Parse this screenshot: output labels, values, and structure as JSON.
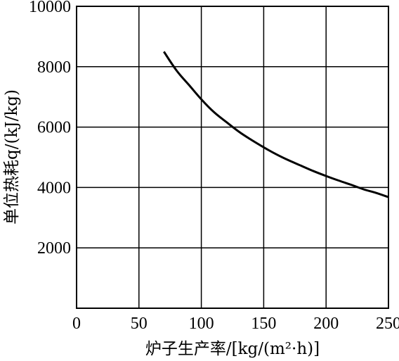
{
  "chart_data": {
    "type": "line",
    "xlabel": "炉子生产率/[kg/(m²·h)]",
    "ylabel": "单位热耗q/(kJ/kg)",
    "xlim": [
      0,
      250
    ],
    "ylim": [
      0,
      10000
    ],
    "x_ticks": [
      0,
      50,
      100,
      150,
      200,
      250
    ],
    "y_ticks": [
      2000,
      4000,
      6000,
      8000,
      10000
    ],
    "x_tick_labels": [
      "0",
      "50",
      "100",
      "150",
      "200",
      "250"
    ],
    "y_tick_labels": [
      "2000",
      "4000",
      "6000",
      "8000",
      "10000"
    ],
    "grid": true,
    "series": [
      {
        "x": [
          70,
          80,
          90,
          100,
          110,
          120,
          130,
          140,
          150,
          160,
          170,
          180,
          190,
          200,
          210,
          220,
          230,
          240,
          250
        ],
        "y": [
          8500,
          7880,
          7400,
          6920,
          6500,
          6170,
          5850,
          5580,
          5330,
          5100,
          4900,
          4720,
          4540,
          4380,
          4230,
          4090,
          3940,
          3820,
          3680
        ]
      }
    ]
  }
}
